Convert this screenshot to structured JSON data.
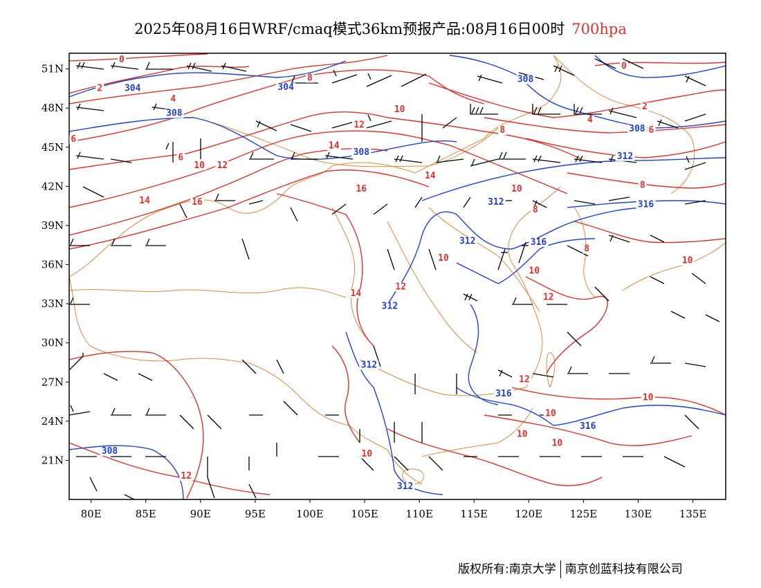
{
  "title": {
    "main": "2025年08月16日WRF/cmaq模式36km预报产品:08月16日00时",
    "level": "700hpa"
  },
  "axes": {
    "lat_labels": [
      "51N",
      "48N",
      "45N",
      "42N",
      "39N",
      "36N",
      "33N",
      "30N",
      "27N",
      "24N",
      "21N"
    ],
    "lat_values": [
      51,
      48,
      45,
      42,
      39,
      36,
      33,
      30,
      27,
      24,
      21
    ],
    "lon_labels": [
      "80E",
      "85E",
      "90E",
      "95E",
      "100E",
      "105E",
      "110E",
      "115E",
      "120E",
      "125E",
      "130E",
      "135E"
    ],
    "lon_values": [
      80,
      85,
      90,
      95,
      100,
      105,
      110,
      115,
      120,
      125,
      130,
      135
    ],
    "lon_range": [
      78,
      138
    ],
    "lat_range": [
      18,
      52.2
    ]
  },
  "contours": {
    "temperature_color": "#e0302a",
    "height_color": "#1f3fd0",
    "border_color": "#d98a3a",
    "wind_color": "#000000",
    "temperature_labels": [
      {
        "text": "0",
        "lon": 82.8,
        "lat": 51.5
      },
      {
        "text": "2",
        "lon": 80.8,
        "lat": 49.3
      },
      {
        "text": "4",
        "lon": 87.5,
        "lat": 48.5
      },
      {
        "text": "6",
        "lon": 78.4,
        "lat": 45.4
      },
      {
        "text": "6",
        "lon": 88.2,
        "lat": 44.0
      },
      {
        "text": "8",
        "lon": 120.6,
        "lat": 40.0
      },
      {
        "text": "10",
        "lon": 89.9,
        "lat": 43.4
      },
      {
        "text": "12",
        "lon": 92.0,
        "lat": 43.4
      },
      {
        "text": "14",
        "lon": 84.9,
        "lat": 40.7
      },
      {
        "text": "16",
        "lon": 89.7,
        "lat": 40.6
      },
      {
        "text": "8",
        "lon": 100.0,
        "lat": 50.1
      },
      {
        "text": "10",
        "lon": 108.2,
        "lat": 47.7
      },
      {
        "text": "12",
        "lon": 104.5,
        "lat": 46.5
      },
      {
        "text": "14",
        "lon": 102.2,
        "lat": 44.9
      },
      {
        "text": "16",
        "lon": 104.7,
        "lat": 41.6
      },
      {
        "text": "14",
        "lon": 111.0,
        "lat": 42.6
      },
      {
        "text": "0",
        "lon": 128.7,
        "lat": 51.0
      },
      {
        "text": "2",
        "lon": 130.6,
        "lat": 47.9
      },
      {
        "text": "4",
        "lon": 125.6,
        "lat": 46.9
      },
      {
        "text": "6",
        "lon": 131.2,
        "lat": 46.1
      },
      {
        "text": "8",
        "lon": 130.4,
        "lat": 41.9
      },
      {
        "text": "8",
        "lon": 117.6,
        "lat": 46.1
      },
      {
        "text": "10",
        "lon": 118.9,
        "lat": 41.6
      },
      {
        "text": "8",
        "lon": 125.3,
        "lat": 37.0
      },
      {
        "text": "10",
        "lon": 134.5,
        "lat": 36.1
      },
      {
        "text": "10",
        "lon": 120.5,
        "lat": 35.3
      },
      {
        "text": "12",
        "lon": 121.8,
        "lat": 33.3
      },
      {
        "text": "10",
        "lon": 112.2,
        "lat": 36.3
      },
      {
        "text": "12",
        "lon": 108.3,
        "lat": 34.1
      },
      {
        "text": "14",
        "lon": 104.2,
        "lat": 33.6
      },
      {
        "text": "12",
        "lon": 119.6,
        "lat": 27.0
      },
      {
        "text": "10",
        "lon": 130.9,
        "lat": 25.6
      },
      {
        "text": "10",
        "lon": 122.0,
        "lat": 24.4
      },
      {
        "text": "10",
        "lon": 122.6,
        "lat": 22.1
      },
      {
        "text": "10",
        "lon": 119.4,
        "lat": 22.8
      },
      {
        "text": "10",
        "lon": 105.2,
        "lat": 21.3
      },
      {
        "text": "12",
        "lon": 88.7,
        "lat": 19.6
      }
    ],
    "height_labels": [
      {
        "text": "304",
        "lon": 83.8,
        "lat": 49.3
      },
      {
        "text": "304",
        "lon": 97.8,
        "lat": 49.4
      },
      {
        "text": "308",
        "lon": 87.6,
        "lat": 47.4
      },
      {
        "text": "308",
        "lon": 104.7,
        "lat": 44.4
      },
      {
        "text": "308",
        "lon": 119.7,
        "lat": 50.0
      },
      {
        "text": "308",
        "lon": 129.9,
        "lat": 46.2
      },
      {
        "text": "312",
        "lon": 117.0,
        "lat": 40.6
      },
      {
        "text": "312",
        "lon": 128.8,
        "lat": 44.1
      },
      {
        "text": "316",
        "lon": 130.7,
        "lat": 40.4
      },
      {
        "text": "316",
        "lon": 120.9,
        "lat": 37.5
      },
      {
        "text": "312",
        "lon": 114.4,
        "lat": 37.6
      },
      {
        "text": "312",
        "lon": 107.3,
        "lat": 32.6
      },
      {
        "text": "312",
        "lon": 105.4,
        "lat": 28.1
      },
      {
        "text": "316",
        "lon": 117.7,
        "lat": 25.9
      },
      {
        "text": "316",
        "lon": 125.4,
        "lat": 23.4
      },
      {
        "text": "308",
        "lon": 81.7,
        "lat": 21.5
      },
      {
        "text": "312",
        "lon": 108.7,
        "lat": 18.8
      }
    ]
  },
  "footer": {
    "left": "版权所有:南京大学",
    "right": "南京创蓝科技有限公司"
  }
}
